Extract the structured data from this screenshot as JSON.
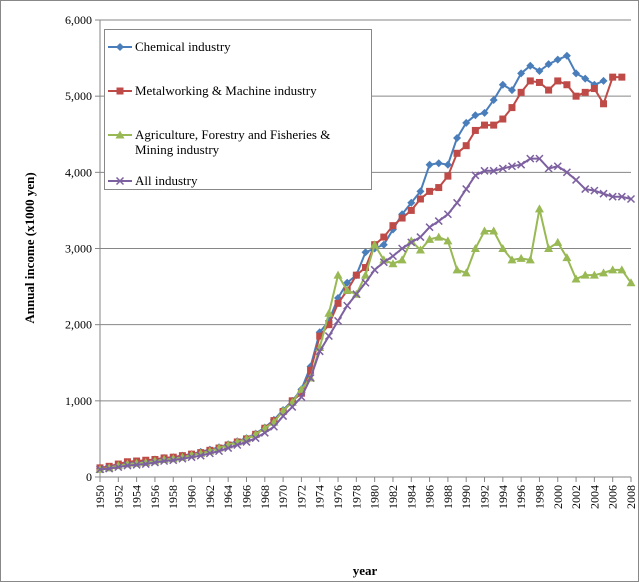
{
  "chart_data": {
    "type": "line",
    "xlabel": "year",
    "ylabel": "Annual income (x1000  yen)",
    "x": [
      1950,
      1951,
      1952,
      1953,
      1954,
      1955,
      1956,
      1957,
      1958,
      1959,
      1960,
      1961,
      1962,
      1963,
      1964,
      1965,
      1966,
      1967,
      1968,
      1969,
      1970,
      1971,
      1972,
      1973,
      1974,
      1975,
      1976,
      1977,
      1978,
      1979,
      1980,
      1981,
      1982,
      1983,
      1984,
      1985,
      1986,
      1987,
      1988,
      1989,
      1990,
      1991,
      1992,
      1993,
      1994,
      1995,
      1996,
      1997,
      1998,
      1999,
      2000,
      2001,
      2002,
      2003,
      2004,
      2005,
      2006,
      2007,
      2008
    ],
    "xlim": [
      1950,
      2008
    ],
    "xticks": [
      1950,
      1952,
      1954,
      1956,
      1958,
      1960,
      1962,
      1964,
      1966,
      1968,
      1970,
      1972,
      1974,
      1976,
      1978,
      1980,
      1982,
      1984,
      1986,
      1988,
      1990,
      1992,
      1994,
      1996,
      1998,
      2000,
      2002,
      2004,
      2006,
      2008
    ],
    "ylim": [
      0,
      6000
    ],
    "yticks": [
      0,
      {
        "value": 1000,
        "label": "1,000"
      },
      {
        "value": 2000,
        "label": "2,000"
      },
      {
        "value": 3000,
        "label": "3,000"
      },
      {
        "value": 4000,
        "label": "4,000"
      },
      {
        "value": 5000,
        "label": "5,000"
      },
      {
        "value": 6000,
        "label": "6,000"
      }
    ],
    "grid": true,
    "legend": "upper left",
    "series": [
      {
        "name": "Chemical industry",
        "color": "#4a7ebb",
        "marker": "diamond",
        "values": [
          110,
          130,
          160,
          190,
          200,
          210,
          230,
          250,
          260,
          280,
          300,
          330,
          360,
          390,
          430,
          470,
          510,
          570,
          650,
          750,
          880,
          1000,
          1150,
          1450,
          1900,
          2050,
          2350,
          2550,
          2650,
          2950,
          3000,
          3050,
          3250,
          3450,
          3600,
          3750,
          4100,
          4120,
          4100,
          4450,
          4650,
          4750,
          4780,
          4950,
          5150,
          5080,
          5300,
          5400,
          5330,
          5420,
          5480,
          5530,
          5300,
          5230,
          5150,
          5200,
          null,
          null,
          null
        ]
      },
      {
        "name": "Metalworking & Machine industry",
        "color": "#be4b48",
        "marker": "square",
        "values": [
          120,
          140,
          170,
          200,
          210,
          220,
          230,
          250,
          260,
          280,
          300,
          320,
          350,
          380,
          420,
          460,
          500,
          560,
          640,
          740,
          860,
          1000,
          1100,
          1400,
          1850,
          2000,
          2280,
          2450,
          2650,
          2750,
          3050,
          3150,
          3300,
          3400,
          3500,
          3650,
          3750,
          3800,
          3950,
          4250,
          4350,
          4550,
          4620,
          4620,
          4700,
          4850,
          5050,
          5200,
          5180,
          5080,
          5200,
          5150,
          5000,
          5050,
          5100,
          4900,
          5250,
          5250,
          null
        ]
      },
      {
        "name": "Agriculture, Forestry and Fisheries & Mining industry",
        "color": "#98b954",
        "marker": "triangle",
        "values": [
          100,
          120,
          150,
          170,
          180,
          190,
          210,
          230,
          240,
          260,
          290,
          310,
          340,
          380,
          420,
          460,
          500,
          560,
          640,
          720,
          870,
          980,
          1150,
          1300,
          1700,
          2150,
          2650,
          2450,
          2400,
          2650,
          3050,
          2850,
          2800,
          2850,
          3100,
          2980,
          3120,
          3150,
          3100,
          2720,
          2680,
          3000,
          3230,
          3230,
          3000,
          2850,
          2870,
          2850,
          3520,
          3000,
          3080,
          2880,
          2600,
          2650,
          2650,
          2680,
          2720,
          2720,
          2550
        ]
      },
      {
        "name": "All industry",
        "color": "#7d60a0",
        "marker": "x",
        "values": [
          100,
          110,
          130,
          150,
          160,
          170,
          190,
          210,
          220,
          240,
          260,
          280,
          310,
          340,
          380,
          420,
          460,
          510,
          580,
          660,
          800,
          920,
          1050,
          1300,
          1650,
          1850,
          2050,
          2250,
          2400,
          2550,
          2720,
          2820,
          2900,
          3000,
          3080,
          3150,
          3280,
          3360,
          3450,
          3600,
          3780,
          3960,
          4020,
          4020,
          4050,
          4080,
          4100,
          4180,
          4180,
          4050,
          4080,
          4000,
          3900,
          3780,
          3760,
          3720,
          3680,
          3680,
          3650
        ]
      }
    ]
  }
}
